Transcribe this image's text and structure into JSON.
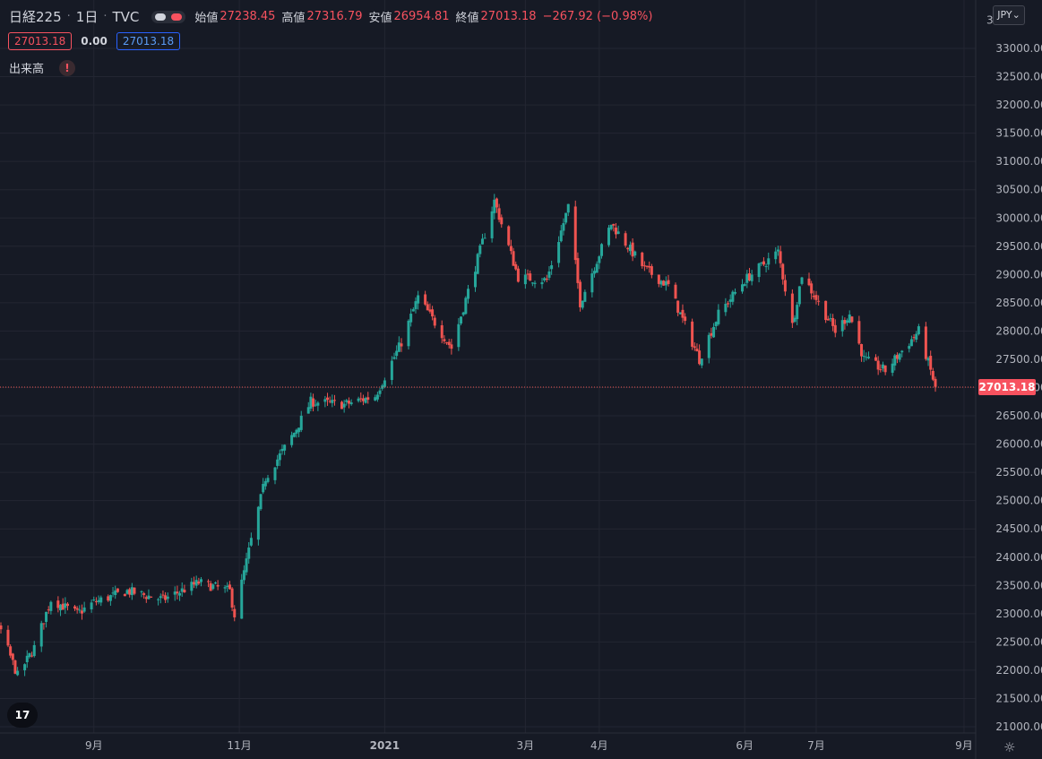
{
  "header": {
    "symbol": "日経225",
    "interval": "1日",
    "source": "TVC",
    "ohlc": [
      {
        "label": "始値",
        "value": "27238.45"
      },
      {
        "label": "高値",
        "value": "27316.79"
      },
      {
        "label": "安値",
        "value": "26954.81"
      },
      {
        "label": "終値",
        "value": "27013.18"
      }
    ],
    "change": "−267.92 (−0.98%)"
  },
  "row2": {
    "price_red": "27013.18",
    "zero": "0.00",
    "price_blue": "27013.18"
  },
  "volume_label": "出来高",
  "warning_glyph": "!",
  "currency": "JPY",
  "logo_text": "17",
  "last_price_label": "27013.18",
  "colors": {
    "background": "#161a25",
    "up": "#26a69a",
    "down": "#ef5350",
    "grid": "#232632",
    "text": "#b2b5be"
  },
  "chart_data": {
    "type": "candlestick",
    "y_axis_ticks": [
      "21000.00",
      "21500.00",
      "22000.00",
      "22500.00",
      "23000.00",
      "23500.00",
      "24000.00",
      "24500.00",
      "25000.00",
      "25500.00",
      "26000.00",
      "26500.00",
      "27000.00",
      "27500.00",
      "28000.00",
      "28500.00",
      "29000.00",
      "29500.00",
      "30000.00",
      "30500.00",
      "31000.00",
      "31500.00",
      "32000.00",
      "32500.00",
      "33000.00"
    ],
    "top_tick_partial": "3",
    "ylim": [
      20850,
      33800
    ],
    "x_axis_ticks": [
      "9月",
      "11月",
      "2021",
      "3月",
      "4月",
      "6月",
      "7月",
      "9月"
    ],
    "x_range": [
      "2020-07-01",
      "2021-09-03"
    ],
    "last_price": 27013.18,
    "anchors": [
      {
        "date": "2020-07-01",
        "price": 22200
      },
      {
        "date": "2020-07-15",
        "price": 22850
      },
      {
        "date": "2020-07-24",
        "price": 22700
      },
      {
        "date": "2020-07-31",
        "price": 21900
      },
      {
        "date": "2020-08-07",
        "price": 22400
      },
      {
        "date": "2020-08-14",
        "price": 23250
      },
      {
        "date": "2020-08-25",
        "price": 23000
      },
      {
        "date": "2020-09-01",
        "price": 23200
      },
      {
        "date": "2020-09-15",
        "price": 23400
      },
      {
        "date": "2020-09-30",
        "price": 23250
      },
      {
        "date": "2020-10-15",
        "price": 23550
      },
      {
        "date": "2020-10-28",
        "price": 23400
      },
      {
        "date": "2020-10-30",
        "price": 22980
      },
      {
        "date": "2020-11-06",
        "price": 24300
      },
      {
        "date": "2020-11-12",
        "price": 25400
      },
      {
        "date": "2020-11-24",
        "price": 26200
      },
      {
        "date": "2020-12-01",
        "price": 26750
      },
      {
        "date": "2020-12-15",
        "price": 26700
      },
      {
        "date": "2020-12-28",
        "price": 26850
      },
      {
        "date": "2021-01-08",
        "price": 27800
      },
      {
        "date": "2021-01-15",
        "price": 28600
      },
      {
        "date": "2021-01-29",
        "price": 27700
      },
      {
        "date": "2021-02-05",
        "price": 28700
      },
      {
        "date": "2021-02-16",
        "price": 30300
      },
      {
        "date": "2021-02-26",
        "price": 28950
      },
      {
        "date": "2021-03-10",
        "price": 28900
      },
      {
        "date": "2021-03-19",
        "price": 30200
      },
      {
        "date": "2021-03-24",
        "price": 28500
      },
      {
        "date": "2021-04-06",
        "price": 29900
      },
      {
        "date": "2021-04-20",
        "price": 29100
      },
      {
        "date": "2021-04-30",
        "price": 28800
      },
      {
        "date": "2021-05-13",
        "price": 27500
      },
      {
        "date": "2021-05-21",
        "price": 28300
      },
      {
        "date": "2021-06-01",
        "price": 28900
      },
      {
        "date": "2021-06-15",
        "price": 29400
      },
      {
        "date": "2021-06-21",
        "price": 28100
      },
      {
        "date": "2021-06-25",
        "price": 29000
      },
      {
        "date": "2021-07-09",
        "price": 28000
      },
      {
        "date": "2021-07-15",
        "price": 28300
      },
      {
        "date": "2021-07-21",
        "price": 27500
      },
      {
        "date": "2021-07-30",
        "price": 27300
      },
      {
        "date": "2021-08-13",
        "price": 28000
      },
      {
        "date": "2021-08-20",
        "price": 27013
      }
    ]
  }
}
